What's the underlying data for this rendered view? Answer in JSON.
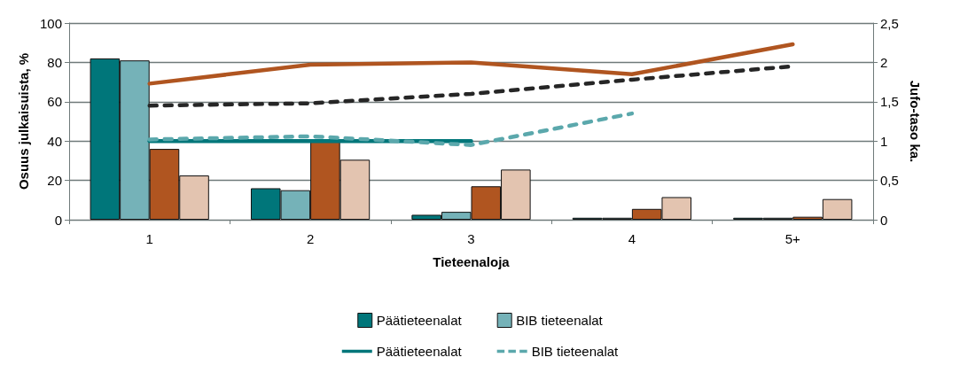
{
  "chart_data": {
    "type": "bar",
    "xlabel": "Tieteenaloja",
    "ylabel": "Osuus julkaisuista, %",
    "y2label": "Jufo-taso ka.",
    "categories": [
      "1",
      "2",
      "3",
      "4",
      "5+"
    ],
    "series": [
      {
        "name": "Päätieteenalat",
        "color": "#00767a",
        "values": [
          82,
          16,
          2.5,
          1,
          1
        ]
      },
      {
        "name": "BIB tieteenalat",
        "color": "#75b2b8",
        "values": [
          81,
          15,
          4,
          1,
          1
        ]
      },
      {
        "color": "#b05520",
        "values": [
          36,
          40,
          17,
          5.5,
          1.5
        ]
      },
      {
        "color": "#e3c4b0",
        "values": [
          22.5,
          30.5,
          25.5,
          11.5,
          10.5
        ]
      },
      {
        "name": "Päätieteenalat",
        "type": "line",
        "axis": "y2",
        "line_style": "solid",
        "color": "#00767a",
        "values": [
          1.0,
          1.0,
          1.0,
          null,
          null
        ]
      },
      {
        "name": "BIB tieteenalat",
        "type": "line",
        "axis": "y2",
        "line_style": "dashed",
        "color": "#5ba8ac",
        "values": [
          1.02,
          1.06,
          0.95,
          1.35,
          null
        ]
      },
      {
        "type": "line",
        "axis": "y2",
        "line_style": "solid",
        "color": "#b05520",
        "values": [
          1.73,
          1.97,
          2.0,
          1.85,
          2.23
        ]
      },
      {
        "type": "line",
        "axis": "y2",
        "line_style": "dashed",
        "color": "#262626",
        "values": [
          1.45,
          1.48,
          1.6,
          1.78,
          1.95
        ]
      }
    ],
    "ylim": [
      0,
      100
    ],
    "yticks": [
      0,
      20,
      40,
      60,
      80,
      100
    ],
    "y2lim": [
      0,
      2.5
    ],
    "y2ticks": [
      {
        "value": 0,
        "label": "0"
      },
      {
        "value": 0.5,
        "label": "0,5"
      },
      {
        "value": 1,
        "label": "1"
      },
      {
        "value": 1.5,
        "label": "1,5"
      },
      {
        "value": 2,
        "label": "2"
      },
      {
        "value": 2.5,
        "label": "2,5"
      }
    ],
    "grid": "y",
    "legend": "bottom",
    "marker": "none"
  }
}
